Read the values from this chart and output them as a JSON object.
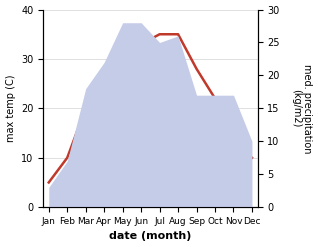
{
  "months": [
    "Jan",
    "Feb",
    "Mar",
    "Apr",
    "May",
    "Jun",
    "Jul",
    "Aug",
    "Sep",
    "Oct",
    "Nov",
    "Dec"
  ],
  "temperature": [
    5,
    10,
    20,
    18,
    25,
    33,
    35,
    35,
    28,
    22,
    14,
    10
  ],
  "precipitation": [
    3,
    7,
    18,
    22,
    28,
    28,
    25,
    26,
    17,
    17,
    17,
    10
  ],
  "temp_color": "#c0392b",
  "precip_fill_color": "#c5cce8",
  "precip_edge_color": "#aab4d4",
  "temp_ylim": [
    0,
    40
  ],
  "precip_ylim": [
    0,
    30
  ],
  "temp_yticks": [
    0,
    10,
    20,
    30,
    40
  ],
  "precip_yticks": [
    0,
    5,
    10,
    15,
    20,
    25,
    30
  ],
  "xlabel": "date (month)",
  "ylabel_left": "max temp (C)",
  "ylabel_right": "med. precipitation\n(kg/m2)",
  "figsize": [
    3.18,
    2.47
  ],
  "dpi": 100
}
